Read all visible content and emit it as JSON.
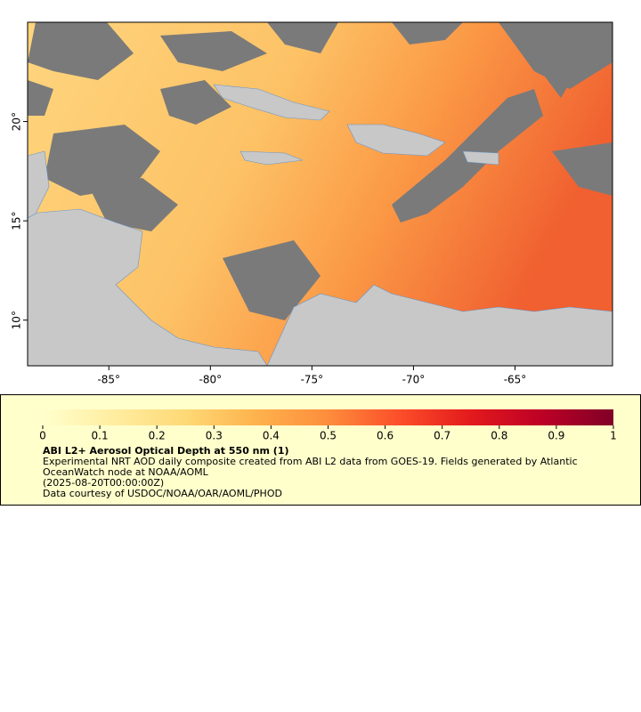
{
  "map": {
    "xlim": [
      -89,
      -60.2
    ],
    "ylim": [
      7.7,
      25
    ],
    "xticks": [
      {
        "value": -85,
        "label": "-85°"
      },
      {
        "value": -80,
        "label": "-80°"
      },
      {
        "value": -75,
        "label": "-75°"
      },
      {
        "value": -70,
        "label": "-70°"
      },
      {
        "value": -65,
        "label": "-65°"
      }
    ],
    "yticks": [
      {
        "value": 10,
        "label": "10°"
      },
      {
        "value": 15,
        "label": "15°"
      },
      {
        "value": 20,
        "label": "20°"
      }
    ]
  },
  "colorbar": {
    "range": [
      0,
      1
    ],
    "ticks": [
      0,
      0.1,
      0.2,
      0.3,
      0.4,
      0.5,
      0.6,
      0.7,
      0.8,
      0.9,
      1
    ],
    "colors": [
      "#ffffcc",
      "#ffeda0",
      "#fed976",
      "#feb24c",
      "#fd8d3c",
      "#fc4e2a",
      "#e31a1c",
      "#bd0026",
      "#800026"
    ]
  },
  "legend": {
    "title": "ABI L2+ Aerosol Optical Depth at 550 nm (1)",
    "description": "Experimental NRT AOD daily composite created from ABI L2 data from GOES-19. Fields generated by Atlantic OceanWatch node at NOAA/AOML",
    "time": "(2025-08-20T00:00:00Z)",
    "credit": "Data courtesy of USDOC/NOAA/OAR/AOML/PHOD"
  }
}
